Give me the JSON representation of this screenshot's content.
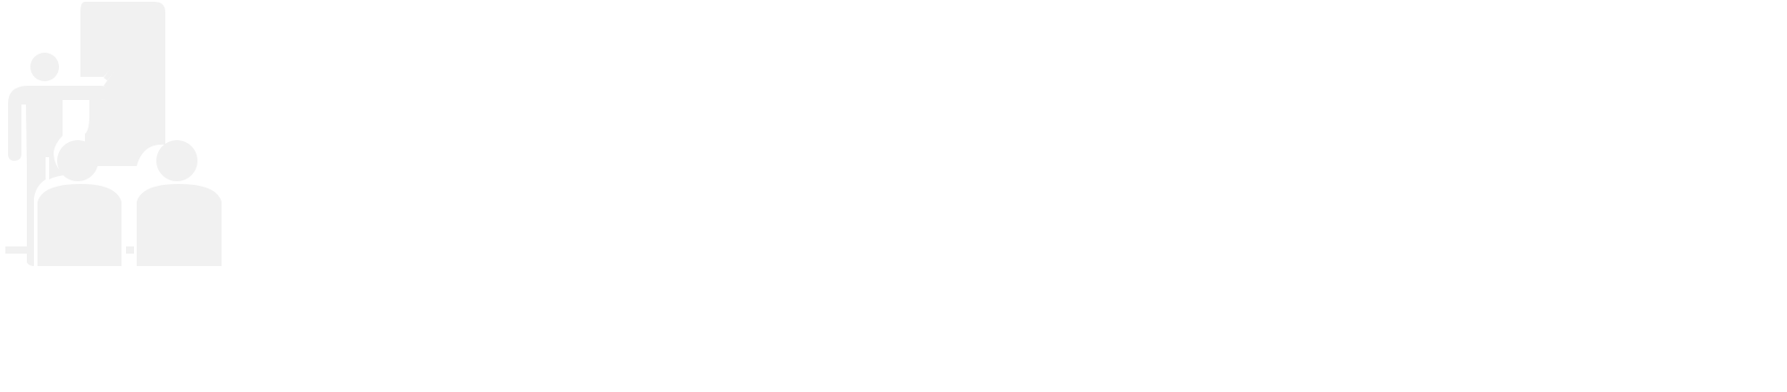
{
  "icon": {
    "name": "classroom-presentation-icon",
    "color": "#f1f1f1",
    "background": "#ffffff"
  }
}
